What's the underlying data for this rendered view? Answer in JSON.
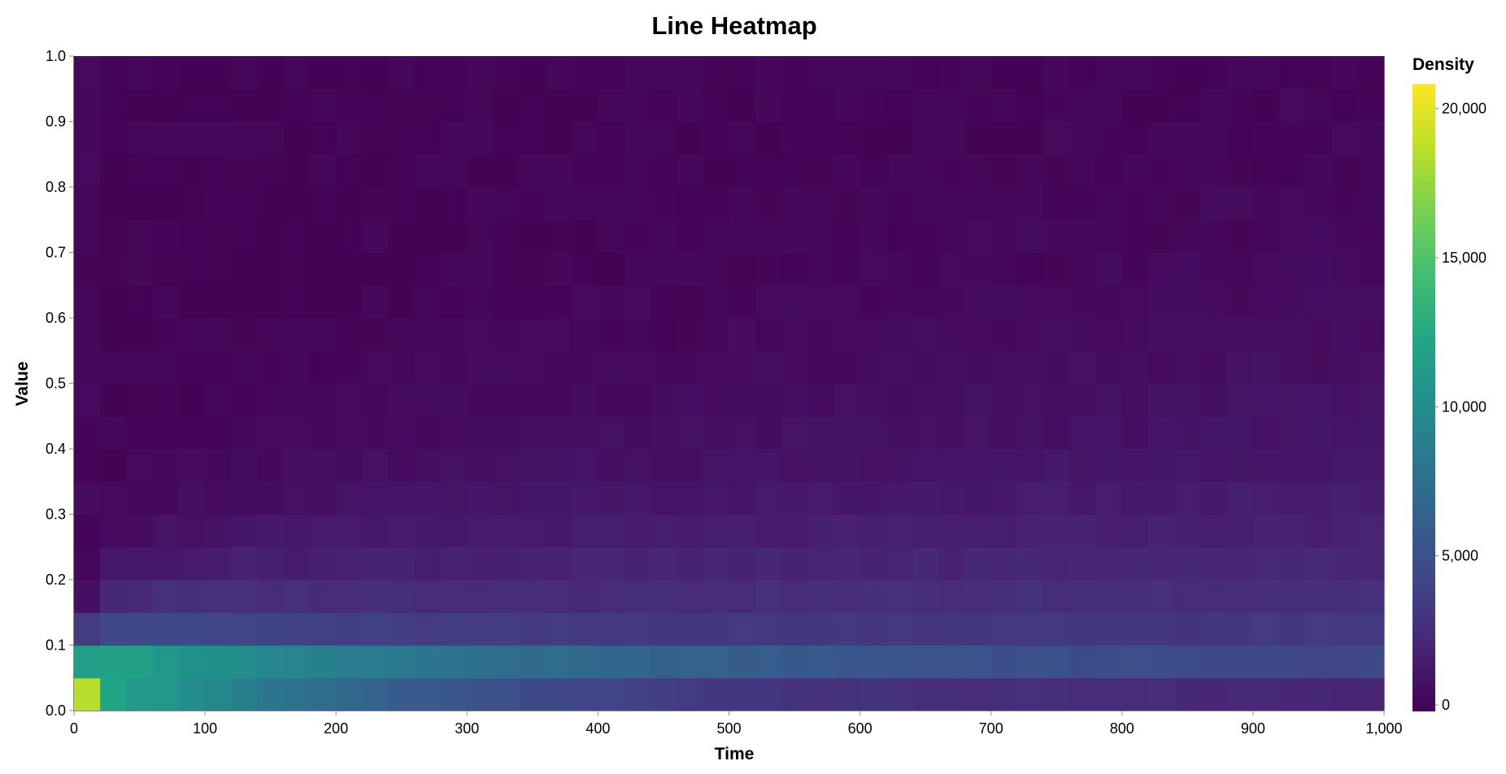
{
  "chart_data": {
    "type": "heatmap",
    "title": "Line Heatmap",
    "xlabel": "Time",
    "ylabel": "Value",
    "xlim": [
      0,
      1000
    ],
    "ylim": [
      0,
      1.0
    ],
    "x_ticks": [
      "0",
      "100",
      "200",
      "300",
      "400",
      "500",
      "600",
      "700",
      "800",
      "900",
      "1,000"
    ],
    "y_ticks": [
      "0.0",
      "0.1",
      "0.2",
      "0.3",
      "0.4",
      "0.5",
      "0.6",
      "0.7",
      "0.8",
      "0.9",
      "1.0"
    ],
    "x_bin_width": 20,
    "y_bin_width": 0.05,
    "legend": {
      "title": "Density",
      "placement": "right",
      "domain": [
        0,
        20000
      ],
      "ticks": [
        "0",
        "5,000",
        "10,000",
        "15,000",
        "20,000"
      ],
      "colormap": "viridis"
    },
    "density_profile": {
      "description_free": true,
      "y_bins": [
        0.0,
        0.05,
        0.1,
        0.15,
        0.2,
        0.25,
        0.3,
        0.35,
        0.4,
        0.45,
        0.5,
        0.55,
        0.6,
        0.65,
        0.7,
        0.75,
        0.8,
        0.85,
        0.9,
        0.95
      ],
      "x_bins_first_column": [
        0,
        20
      ],
      "sample_values": [
        {
          "x": 10,
          "y": 0.025,
          "v": 18000
        },
        {
          "x": 10,
          "y": 0.075,
          "v": 11500
        },
        {
          "x": 10,
          "y": 0.125,
          "v": 3500
        },
        {
          "x": 30,
          "y": 0.025,
          "v": 12000
        },
        {
          "x": 30,
          "y": 0.075,
          "v": 11000
        },
        {
          "x": 50,
          "y": 0.025,
          "v": 10500
        },
        {
          "x": 50,
          "y": 0.075,
          "v": 10500
        },
        {
          "x": 100,
          "y": 0.075,
          "v": 8500
        },
        {
          "x": 100,
          "y": 0.125,
          "v": 7000
        },
        {
          "x": 500,
          "y": 0.075,
          "v": 5500
        },
        {
          "x": 500,
          "y": 0.025,
          "v": 3000
        },
        {
          "x": 900,
          "y": 0.075,
          "v": 3500
        },
        {
          "x": 900,
          "y": 0.025,
          "v": 2000
        },
        {
          "x": 900,
          "y": 0.5,
          "v": 1500
        },
        {
          "x": 10,
          "y": 0.9,
          "v": 300
        }
      ]
    }
  }
}
